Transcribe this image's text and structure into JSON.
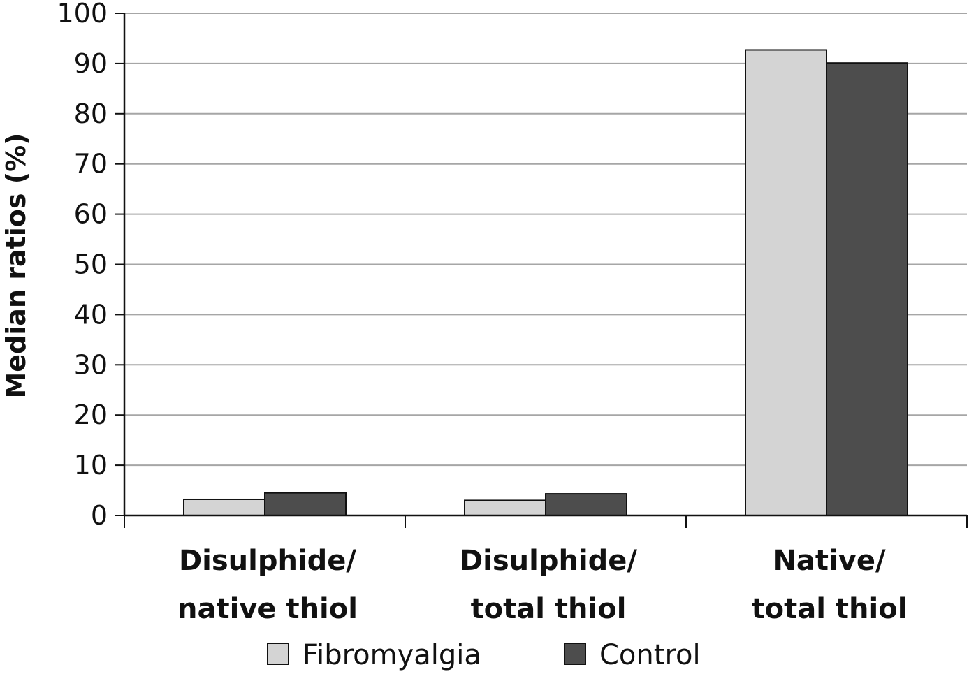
{
  "chart_data": {
    "type": "bar",
    "categories": [
      [
        "Disulphide/",
        "native thiol"
      ],
      [
        "Disulphide/",
        "total thiol"
      ],
      [
        "Native/",
        "total thiol"
      ]
    ],
    "series": [
      {
        "name": "Fibromyalgia",
        "color": "#d4d4d4",
        "values": [
          3.2,
          3.0,
          92.7
        ]
      },
      {
        "name": "Control",
        "color": "#4d4d4d",
        "values": [
          4.5,
          4.3,
          90.1
        ]
      }
    ],
    "ylabel": "Median ratios (%)",
    "xlabel": "",
    "ylim": [
      0,
      100
    ],
    "yticks": [
      0,
      10,
      20,
      30,
      40,
      50,
      60,
      70,
      80,
      90,
      100
    ],
    "grid": true,
    "legend_position": "bottom"
  }
}
